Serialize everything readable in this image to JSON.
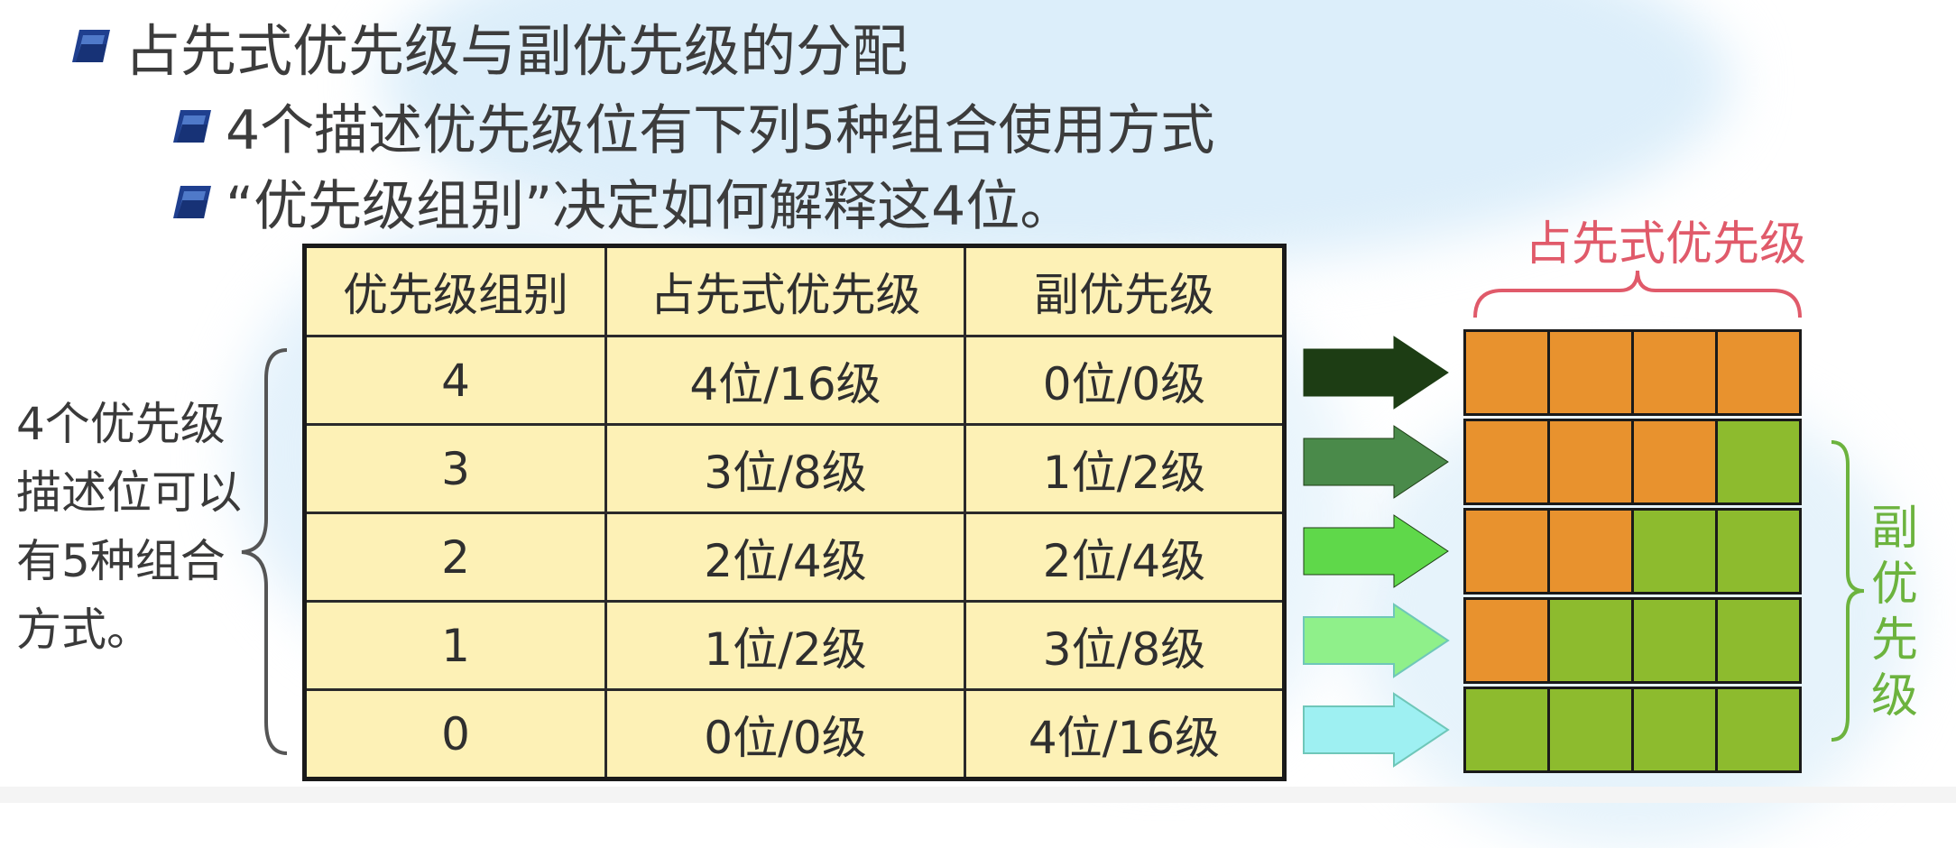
{
  "bullets": {
    "title": "占先式优先级与副优先级的分配",
    "item1": "4个描述优先级位有下列5种组合使用方式",
    "item2": "“优先级组别”决定如何解释这4位。"
  },
  "table": {
    "headers": [
      "优先级组别",
      "占先式优先级",
      "副优先级"
    ],
    "rows": [
      [
        "4",
        "4位/16级",
        "0位/0级"
      ],
      [
        "3",
        "3位/8级",
        "1位/2级"
      ],
      [
        "2",
        "2位/4级",
        "2位/4级"
      ],
      [
        "1",
        "1位/2级",
        "3位/8级"
      ],
      [
        "0",
        "0位/0级",
        "4位/16级"
      ]
    ]
  },
  "left_label": "4个优先级描述位可以有5种组合方式。",
  "diagram": {
    "top_label": "占先式优先级",
    "right_label": "副优先级",
    "preemption_bits_per_row": [
      4,
      3,
      2,
      1,
      0
    ],
    "total_bits": 4,
    "colors": {
      "preemption": "#e8922e",
      "sub": "#8dbb2e",
      "arrows": [
        "#1d3d14",
        "#4a8a4a",
        "#5fd84a",
        "#8ff08a",
        "#9ef0f2"
      ],
      "brace_top": "#e05a6a",
      "brace_right": "#6cb33e",
      "brace_left": "#555555"
    }
  }
}
